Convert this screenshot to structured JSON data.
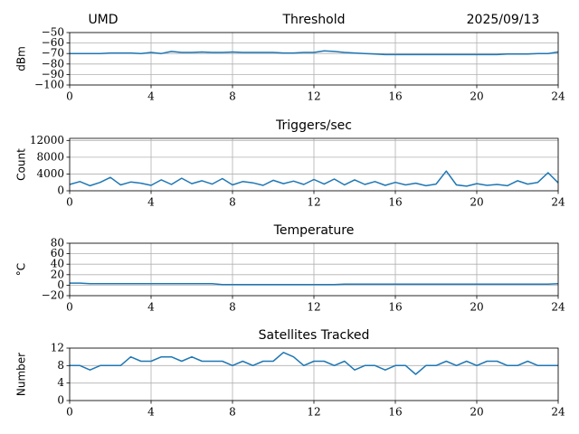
{
  "header": {
    "left": "UMD",
    "right": "2025/09/13"
  },
  "chart_data": [
    {
      "type": "line",
      "title": "Threshold",
      "y_label": "dBm",
      "color": "#1f77b4",
      "grid": true,
      "xlim": [
        0,
        24
      ],
      "xticks": [
        0,
        4,
        8,
        12,
        16,
        20,
        24
      ],
      "ylim": [
        -100,
        -50
      ],
      "yticks": [
        {
          "value": -50,
          "label": "−50"
        },
        {
          "value": -60,
          "label": "−60"
        },
        {
          "value": -70,
          "label": "−70"
        },
        {
          "value": -80,
          "label": "−80"
        },
        {
          "value": -90,
          "label": "−90"
        },
        {
          "value": -100,
          "label": "−100"
        }
      ],
      "x": [
        0,
        0.5,
        1,
        1.5,
        2,
        2.5,
        3,
        3.5,
        4,
        4.5,
        5,
        5.5,
        6,
        6.5,
        7,
        7.5,
        8,
        8.5,
        9,
        9.5,
        10,
        10.5,
        11,
        11.5,
        12,
        12.5,
        13,
        13.5,
        14,
        14.5,
        15,
        15.5,
        16,
        16.5,
        17,
        17.5,
        18,
        18.5,
        19,
        19.5,
        20,
        20.5,
        21,
        21.5,
        22,
        22.5,
        23,
        23.5,
        24
      ],
      "values": [
        -70,
        -70,
        -70,
        -70,
        -69.5,
        -69.5,
        -69.5,
        -70,
        -69,
        -70,
        -68,
        -69,
        -69,
        -68.5,
        -69,
        -69,
        -68.5,
        -69,
        -69,
        -69,
        -69,
        -69.5,
        -69.5,
        -69,
        -69,
        -67.5,
        -68,
        -69,
        -69.5,
        -70,
        -70.5,
        -71,
        -71,
        -71,
        -71,
        -71,
        -71,
        -71,
        -71,
        -71,
        -71,
        -71,
        -71,
        -70.5,
        -70.5,
        -70.5,
        -70,
        -70,
        -68.5
      ]
    },
    {
      "type": "line",
      "title": "Triggers/sec",
      "y_label": "Count",
      "color": "#1f77b4",
      "grid": true,
      "xlim": [
        0,
        24
      ],
      "xticks": [
        0,
        4,
        8,
        12,
        16,
        20,
        24
      ],
      "ylim": [
        0,
        12500
      ],
      "yticks": [
        0,
        4000,
        8000,
        12000
      ],
      "x": [
        0,
        0.5,
        1,
        1.5,
        2,
        2.5,
        3,
        3.5,
        4,
        4.5,
        5,
        5.5,
        6,
        6.5,
        7,
        7.5,
        8,
        8.5,
        9,
        9.5,
        10,
        10.5,
        11,
        11.5,
        12,
        12.5,
        13,
        13.5,
        14,
        14.5,
        15,
        15.5,
        16,
        16.5,
        17,
        17.5,
        18,
        18.5,
        19,
        19.5,
        20,
        20.5,
        21,
        21.5,
        22,
        22.5,
        23,
        23.5,
        24
      ],
      "values": [
        1500,
        2200,
        1200,
        2000,
        3200,
        1400,
        2100,
        1800,
        1300,
        2600,
        1500,
        3000,
        1700,
        2400,
        1600,
        2900,
        1400,
        2200,
        1900,
        1300,
        2500,
        1700,
        2300,
        1500,
        2700,
        1600,
        2800,
        1400,
        2600,
        1500,
        2200,
        1300,
        2000,
        1400,
        1800,
        1200,
        1600,
        4700,
        1400,
        1100,
        1700,
        1300,
        1500,
        1200,
        2400,
        1600,
        2000,
        4300,
        1900
      ]
    },
    {
      "type": "line",
      "title": "Temperature",
      "y_label": "°C",
      "color": "#1f77b4",
      "grid": true,
      "xlim": [
        0,
        24
      ],
      "xticks": [
        0,
        4,
        8,
        12,
        16,
        20,
        24
      ],
      "ylim": [
        -20,
        80
      ],
      "yticks": [
        80,
        60,
        40,
        20,
        0,
        {
          "value": -20,
          "label": "−20"
        }
      ],
      "x": [
        0,
        0.5,
        1,
        1.5,
        2,
        2.5,
        3,
        3.5,
        4,
        4.5,
        5,
        5.5,
        6,
        6.5,
        7,
        7.5,
        8,
        8.5,
        9,
        9.5,
        10,
        10.5,
        11,
        11.5,
        12,
        12.5,
        13,
        13.5,
        14,
        14.5,
        15,
        15.5,
        16,
        16.5,
        17,
        17.5,
        18,
        18.5,
        19,
        19.5,
        20,
        20.5,
        21,
        21.5,
        22,
        22.5,
        23,
        23.5,
        24
      ],
      "values": [
        4,
        4,
        3,
        3,
        3,
        3,
        3,
        3,
        3,
        3,
        3,
        3,
        3,
        3,
        3,
        1,
        1,
        1,
        1,
        1,
        1,
        1,
        1,
        1,
        1,
        1,
        1,
        2,
        2,
        2,
        2,
        2,
        2,
        2,
        2,
        2,
        2,
        2,
        2,
        2,
        2,
        2,
        2,
        2,
        2,
        2,
        2,
        2,
        3
      ]
    },
    {
      "type": "line",
      "title": "Satellites Tracked",
      "y_label": "Number",
      "color": "#1f77b4",
      "grid": true,
      "xlim": [
        0,
        24
      ],
      "xticks": [
        0,
        4,
        8,
        12,
        16,
        20,
        24
      ],
      "ylim": [
        0,
        12
      ],
      "yticks": [
        0,
        4,
        8,
        12
      ],
      "x": [
        0,
        0.5,
        1,
        1.5,
        2,
        2.5,
        3,
        3.5,
        4,
        4.5,
        5,
        5.5,
        6,
        6.5,
        7,
        7.5,
        8,
        8.5,
        9,
        9.5,
        10,
        10.5,
        11,
        11.5,
        12,
        12.5,
        13,
        13.5,
        14,
        14.5,
        15,
        15.5,
        16,
        16.5,
        17,
        17.5,
        18,
        18.5,
        19,
        19.5,
        20,
        20.5,
        21,
        21.5,
        22,
        22.5,
        23,
        23.5,
        24
      ],
      "values": [
        8,
        8,
        7,
        8,
        8,
        8,
        10,
        9,
        9,
        10,
        10,
        9,
        10,
        9,
        9,
        9,
        8,
        9,
        8,
        9,
        9,
        11,
        10,
        8,
        9,
        9,
        8,
        9,
        7,
        8,
        8,
        7,
        8,
        8,
        6,
        8,
        8,
        9,
        8,
        9,
        8,
        9,
        9,
        8,
        8,
        9,
        8,
        8,
        8
      ]
    }
  ]
}
